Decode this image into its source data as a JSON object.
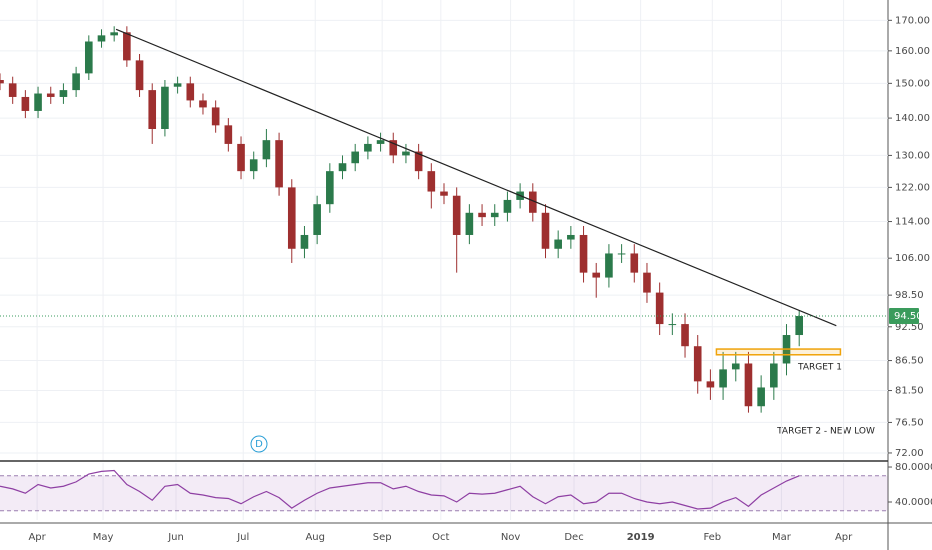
{
  "chart_data": {
    "type": "candlestick",
    "x": [
      0,
      4,
      8,
      12,
      16,
      20,
      24,
      28,
      32,
      36,
      40,
      44,
      48,
      52,
      56,
      60,
      64,
      68,
      72,
      76,
      80,
      84,
      88,
      92,
      96,
      100,
      104,
      108,
      112,
      116,
      120,
      124,
      128,
      132,
      136,
      140,
      144,
      148,
      152,
      156,
      160,
      164,
      168,
      172,
      176,
      180,
      184,
      188,
      192,
      196,
      200,
      204,
      208,
      212,
      216,
      220,
      224,
      228,
      232,
      236,
      240,
      244,
      248,
      252
    ],
    "open": [
      151,
      150,
      146,
      142,
      147,
      146,
      148,
      153,
      163,
      165,
      166,
      157,
      148,
      137,
      149,
      150,
      145,
      143,
      138,
      133,
      126,
      129,
      134,
      122,
      108,
      111,
      118,
      126,
      128,
      131,
      133,
      134,
      130,
      131,
      126,
      121,
      120,
      111,
      116,
      115,
      116,
      119,
      121,
      116,
      108,
      110,
      111,
      103,
      102,
      107,
      107,
      103,
      99,
      93,
      93,
      89,
      83,
      82,
      85,
      86,
      79,
      82,
      86,
      91
    ],
    "high": [
      153,
      152,
      148,
      149,
      149,
      150,
      155,
      165,
      167,
      168,
      168,
      159,
      150,
      151,
      152,
      152,
      147,
      145,
      140,
      135,
      131,
      137,
      136,
      124,
      113,
      120,
      128,
      130,
      133,
      135,
      136,
      136,
      133,
      133,
      128,
      123,
      122,
      118,
      118,
      118,
      121,
      123,
      123,
      118,
      112,
      113,
      113,
      105,
      109,
      109,
      109,
      105,
      101,
      95,
      95,
      91,
      85,
      88,
      88,
      88,
      84,
      88,
      93,
      95.5
    ],
    "low": [
      148,
      144,
      140,
      140,
      144,
      144,
      146,
      151,
      161,
      163,
      155,
      146,
      133,
      135,
      147,
      143,
      141,
      136,
      131,
      124,
      124,
      127,
      120,
      105,
      106,
      109,
      116,
      124,
      126,
      129,
      131,
      128,
      128,
      124,
      117,
      118,
      103,
      109,
      113,
      113,
      114,
      117,
      114,
      106,
      106,
      108,
      101,
      98,
      100,
      105,
      101,
      97,
      91,
      91,
      87,
      81,
      80,
      80,
      83,
      78,
      78,
      80,
      84,
      89
    ],
    "close": [
      150,
      146,
      142,
      147,
      146,
      148,
      153,
      163,
      165,
      166,
      157,
      148,
      137,
      149,
      150,
      145,
      143,
      138,
      133,
      126,
      129,
      134,
      122,
      108,
      111,
      118,
      126,
      128,
      131,
      133,
      134,
      130,
      131,
      126,
      121,
      120,
      111,
      116,
      115,
      116,
      119,
      121,
      116,
      108,
      110,
      111,
      103,
      102,
      107,
      107,
      103,
      99,
      93,
      93,
      89,
      83,
      82,
      85,
      86,
      79,
      82,
      86,
      91,
      94.5
    ],
    "up_color": "#2b7a4b",
    "down_color": "#9e2f2f",
    "log_scale": true,
    "grid": true,
    "xlim": [
      0,
      280
    ],
    "xticks": [
      {
        "value": 11.7,
        "label": "Apr"
      },
      {
        "value": 32.5,
        "label": "May"
      },
      {
        "value": 55.5,
        "label": "Jun"
      },
      {
        "value": 76.7,
        "label": "Jul"
      },
      {
        "value": 99.4,
        "label": "Aug"
      },
      {
        "value": 120.5,
        "label": "Sep"
      },
      {
        "value": 139,
        "label": "Oct"
      },
      {
        "value": 161,
        "label": "Nov"
      },
      {
        "value": 181,
        "label": "Dec"
      },
      {
        "value": 202,
        "label": "2019"
      },
      {
        "value": 224.6,
        "label": "Feb"
      },
      {
        "value": 246.4,
        "label": "Mar"
      },
      {
        "value": 266,
        "label": "Apr"
      }
    ],
    "ylim": [
      71,
      177
    ],
    "yticks": [
      {
        "value": 170,
        "label": "170.00"
      },
      {
        "value": 160,
        "label": "160.00"
      },
      {
        "value": 150,
        "label": "150.00"
      },
      {
        "value": 140,
        "label": "140.00"
      },
      {
        "value": 130,
        "label": "130.00"
      },
      {
        "value": 122,
        "label": "122.00"
      },
      {
        "value": 114,
        "label": "114.00"
      },
      {
        "value": 106,
        "label": "106.00"
      },
      {
        "value": 98.5,
        "label": "98.50"
      },
      {
        "value": 92.5,
        "label": "92.50"
      },
      {
        "value": 86.5,
        "label": "86.50"
      },
      {
        "value": 81.5,
        "label": "81.50"
      },
      {
        "value": 76.5,
        "label": "76.50"
      },
      {
        "value": 72,
        "label": "72.00"
      }
    ],
    "last_price": {
      "value": 94.5,
      "label": "94.50",
      "color": "#3a9b5c"
    },
    "trendline": {
      "x": [
        36.6,
        263.7
      ],
      "y": [
        167,
        92.7
      ],
      "color": "#222222"
    },
    "target_zone": {
      "x": [
        225.9,
        265
      ],
      "y": [
        87.5,
        88.5
      ],
      "color": "#f0a30a",
      "label": "TARGET 1"
    },
    "annotation": "TARGET 2 - NEW LOW",
    "marker": "D",
    "rsi": {
      "values": [
        58,
        55,
        50,
        60,
        56,
        58,
        63,
        72,
        75,
        76,
        60,
        52,
        42,
        58,
        60,
        50,
        48,
        45,
        44,
        38,
        46,
        52,
        45,
        33,
        42,
        50,
        56,
        58,
        60,
        62,
        62,
        55,
        58,
        52,
        48,
        47,
        40,
        50,
        49,
        50,
        54,
        58,
        46,
        38,
        46,
        48,
        38,
        40,
        50,
        50,
        44,
        40,
        38,
        40,
        36,
        32,
        33,
        40,
        45,
        35,
        48,
        56,
        64,
        70
      ],
      "color": "#8e3fa3",
      "ylim": [
        19.4,
        84.6
      ],
      "bands": [
        30,
        70
      ],
      "yticks": [
        {
          "value": 80,
          "label": "80.0000"
        },
        {
          "value": 40,
          "label": "40.0000"
        }
      ]
    }
  }
}
